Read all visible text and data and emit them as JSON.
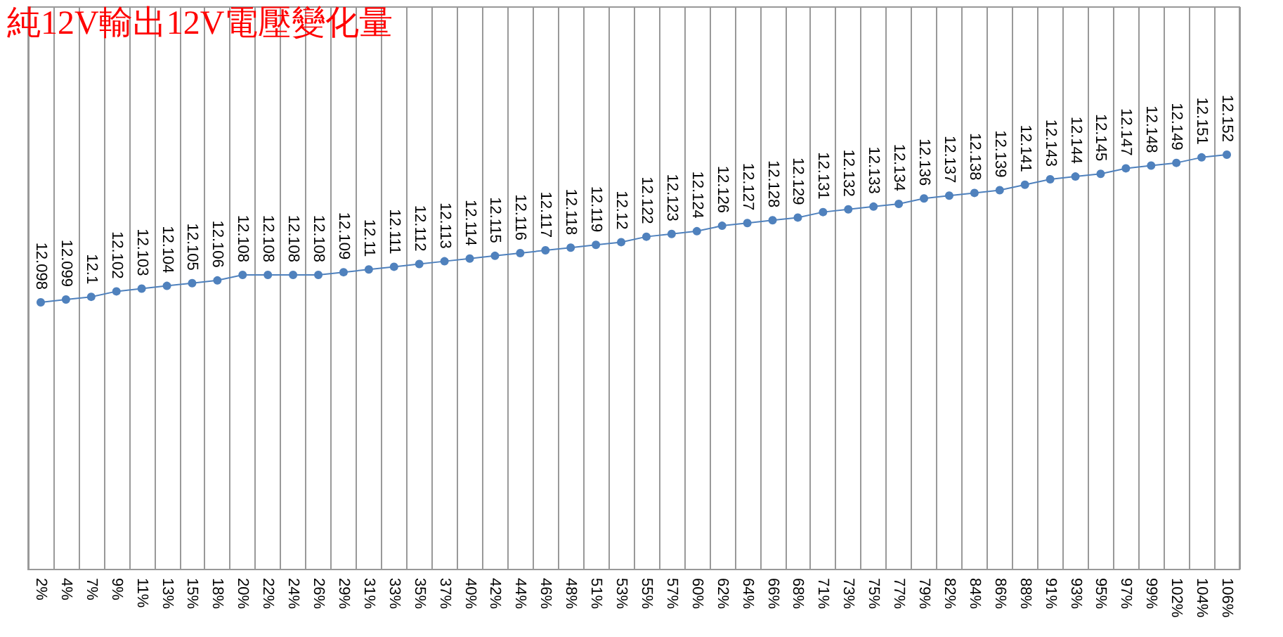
{
  "chart_data": {
    "type": "line",
    "title": "純12V輸出12V電壓變化量",
    "categories": [
      "2%",
      "4%",
      "7%",
      "9%",
      "11%",
      "13%",
      "15%",
      "18%",
      "20%",
      "22%",
      "24%",
      "26%",
      "29%",
      "31%",
      "33%",
      "35%",
      "37%",
      "40%",
      "42%",
      "44%",
      "46%",
      "48%",
      "51%",
      "53%",
      "55%",
      "57%",
      "60%",
      "62%",
      "64%",
      "66%",
      "68%",
      "71%",
      "73%",
      "75%",
      "77%",
      "79%",
      "82%",
      "84%",
      "86%",
      "88%",
      "91%",
      "93%",
      "95%",
      "97%",
      "99%",
      "102%",
      "104%",
      "106%"
    ],
    "series": [
      {
        "color": "#4f81bd",
        "values": [
          12.098,
          12.099,
          12.1,
          12.102,
          12.103,
          12.104,
          12.105,
          12.106,
          12.108,
          12.108,
          12.108,
          12.108,
          12.109,
          12.11,
          12.111,
          12.112,
          12.113,
          12.114,
          12.115,
          12.116,
          12.117,
          12.118,
          12.119,
          12.12,
          12.122,
          12.123,
          12.124,
          12.126,
          12.127,
          12.128,
          12.129,
          12.131,
          12.132,
          12.133,
          12.134,
          12.136,
          12.137,
          12.138,
          12.139,
          12.141,
          12.143,
          12.144,
          12.145,
          12.147,
          12.148,
          12.149,
          12.151,
          12.152
        ]
      }
    ],
    "data_labels": true,
    "grid": "x",
    "marker": "circle",
    "line_style": "solid"
  }
}
